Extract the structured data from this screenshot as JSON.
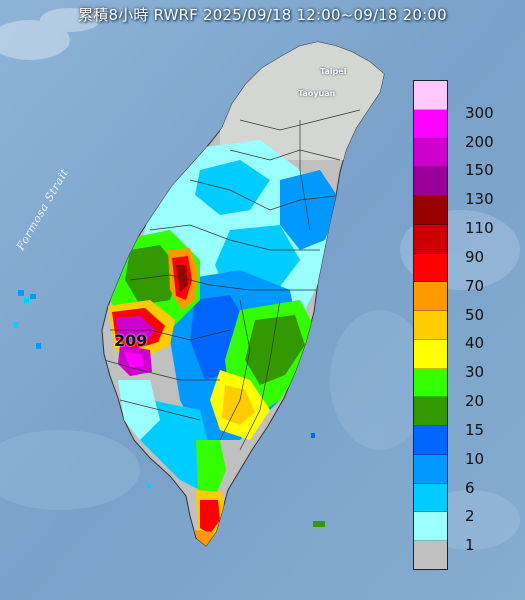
{
  "title": "累積8小時 RWRF 2025/09/18 12:00~09/18 20:00",
  "strait_label": "Formosa Strait",
  "places": [
    {
      "id": "taipei",
      "label": "Taipei"
    },
    {
      "id": "taoyuan",
      "label": "Taoyuan"
    }
  ],
  "peak_value": "209",
  "legend": {
    "levels": [
      {
        "label": "300",
        "color": "#ffc8ff"
      },
      {
        "label": "200",
        "color": "#ff00ff"
      },
      {
        "label": "150",
        "color": "#cc00cc"
      },
      {
        "label": "130",
        "color": "#990099"
      },
      {
        "label": "110",
        "color": "#990000"
      },
      {
        "label": "90",
        "color": "#cc0000"
      },
      {
        "label": "70",
        "color": "#ff0000"
      },
      {
        "label": "50",
        "color": "#ff9900"
      },
      {
        "label": "40",
        "color": "#ffcc00"
      },
      {
        "label": "30",
        "color": "#ffff00"
      },
      {
        "label": "20",
        "color": "#33ff00"
      },
      {
        "label": "15",
        "color": "#339900"
      },
      {
        "label": "10",
        "color": "#0066ff"
      },
      {
        "label": "6",
        "color": "#0099ff"
      },
      {
        "label": "2",
        "color": "#00ccff"
      },
      {
        "label": "1",
        "color": "#99ffff"
      },
      {
        "label": "",
        "color": "#c0c0c0"
      }
    ]
  }
}
